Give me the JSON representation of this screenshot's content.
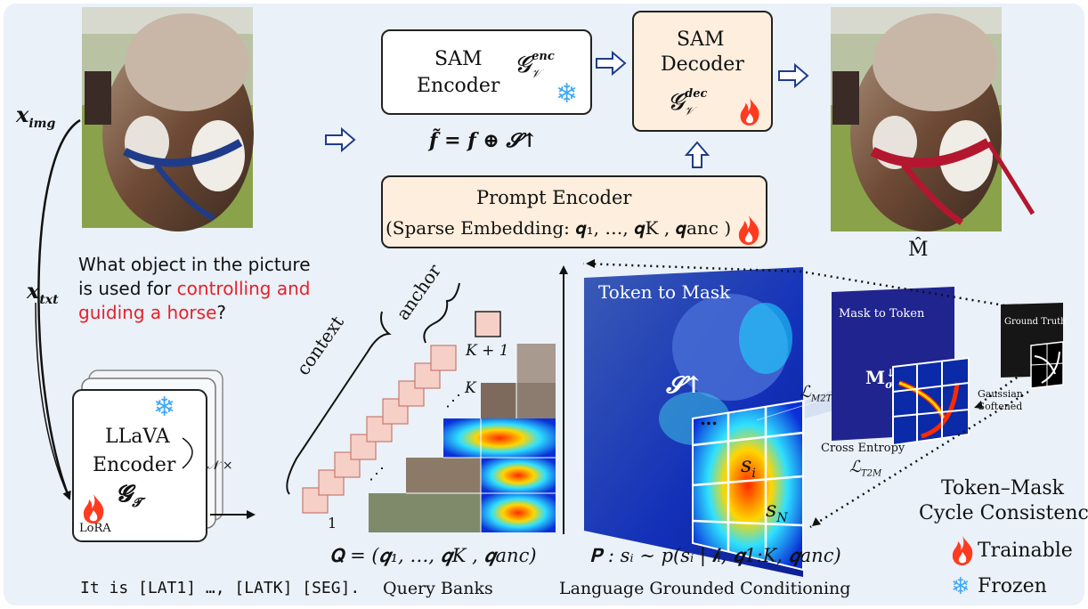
{
  "labels": {
    "x_img": "x",
    "x_img_sub": "img",
    "x_txt": "x",
    "x_txt_sub": "txt",
    "sam_encoder_line1": "SAM",
    "sam_encoder_line2": "Encoder",
    "g_enc": "𝓖",
    "g_enc_sup": "enc",
    "g_enc_sub": "𝒱",
    "sam_decoder_line1": "SAM",
    "sam_decoder_line2": "Decoder",
    "g_dec": "𝓖",
    "g_dec_sup": "dec",
    "g_dec_sub": "𝒱",
    "f_tilde": "f̃ = f ⊕ 𝓢↑",
    "prompt_encoder_line1": "Prompt Encoder",
    "prompt_encoder_line2": "(Sparse Embedding:  𝒒₁, …, 𝒒K , 𝒒anc )",
    "m_hat": "M̂",
    "question_part1": "What object in the picture",
    "question_part2": "is used for ",
    "question_highlight1": "controlling and",
    "question_highlight2": "guiding a horse",
    "question_end": "?",
    "llava_line1": "LLaVA",
    "llava_line2": "Encoder",
    "g_t": "𝓖",
    "g_t_sub": "𝓣",
    "lora": "LoRA",
    "n_times": "𝒩 ×",
    "anchor": "anchor",
    "context": "context",
    "k_plus_1": "K + 1",
    "k": "K",
    "one": "1",
    "token_to_mask": "Token to Mask",
    "mask_to_token": "Mask to Token",
    "ground_truth": "Ground Truth",
    "s_up": "𝓢↑",
    "s_i": "s",
    "s_i_sub": "i",
    "s_n": "s",
    "s_n_sub": "N",
    "m_sigma": "M",
    "m_sigma_sub": "σ",
    "m_sigma_sup": "↓",
    "l_m2t": "ℒ",
    "l_m2t_sub": "M2T",
    "cross_entropy": "Cross Entropy",
    "l_t2m": "ℒ",
    "l_t2m_sub": "T2M",
    "gaussian1": "Gaussian",
    "gaussian2": "Softened",
    "cycle1": "Token–Mask",
    "cycle2": "Cycle Consistency",
    "trainable": "Trainable",
    "frozen": "Frozen",
    "output_text": "It is [LAT1] …, [LATK] [SEG].",
    "q_formula": "𝐐 = (𝒒₁, …, 𝒒K , 𝒒anc)",
    "query_banks": "Query Banks",
    "p_formula": "𝐏 : sᵢ ∼ p(sᵢ  |  𝒊ᵢ,  𝒒1:K,  𝒒anc)",
    "lgc": "Language Grounded Conditioning"
  },
  "colors": {
    "background": "#eaf1f8",
    "peach": "#fdeedd",
    "highlight": "#e8202a",
    "flame": "#ff3b1f",
    "snow": "#3fa9f5",
    "pink_token": "#f6cfc7"
  },
  "icons": [
    "fire-icon",
    "snowflake-icon"
  ]
}
